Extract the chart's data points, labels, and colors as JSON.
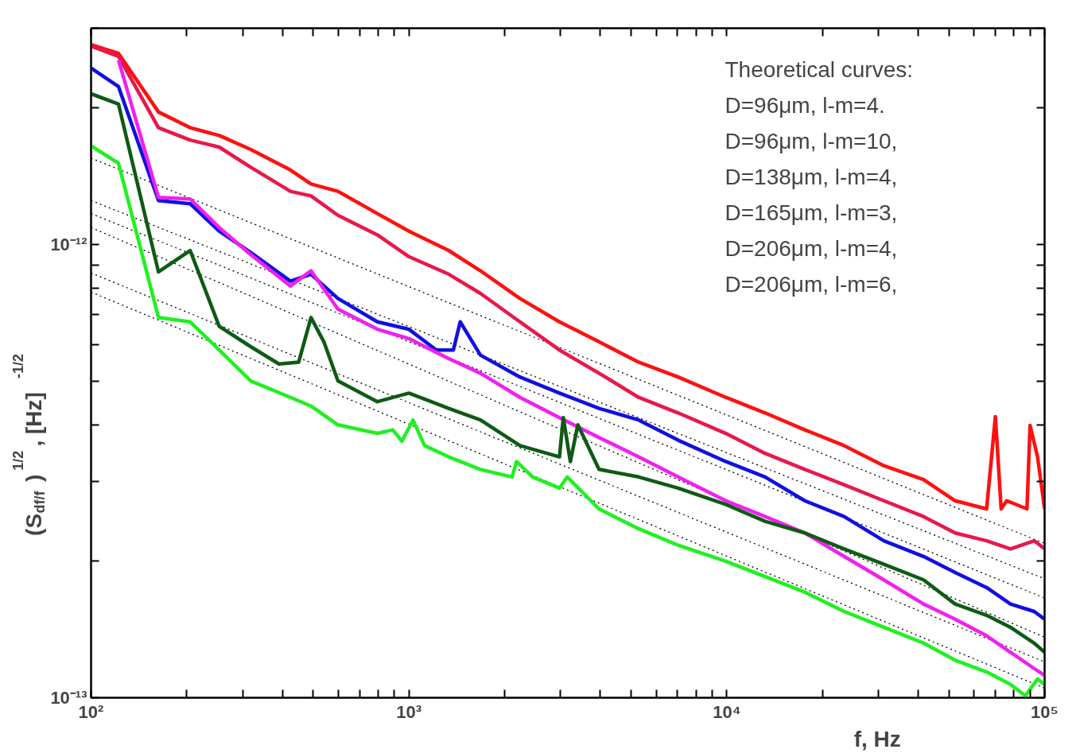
{
  "chart_data": {
    "type": "line",
    "xlabel": "f, Hz",
    "ylabel": "(S$_{df/f}$)$^{1/2}$,   [Hz]$^{-1/2}$",
    "log": "xy",
    "grid": false,
    "marker": "none",
    "xlim": [
      100,
      100000
    ],
    "ylim": [
      1e-13,
      3e-12
    ],
    "xticks": [
      {
        "value": 100,
        "label": "10²"
      },
      {
        "value": 200,
        "label": null
      },
      {
        "value": 300,
        "label": null
      },
      {
        "value": 400,
        "label": null
      },
      {
        "value": 500,
        "label": null
      },
      {
        "value": 600,
        "label": null
      },
      {
        "value": 700,
        "label": null
      },
      {
        "value": 800,
        "label": null
      },
      {
        "value": 900,
        "label": null
      },
      {
        "value": 1000,
        "label": "10³"
      },
      {
        "value": 2000,
        "label": null
      },
      {
        "value": 3000,
        "label": null
      },
      {
        "value": 4000,
        "label": null
      },
      {
        "value": 5000,
        "label": null
      },
      {
        "value": 6000,
        "label": null
      },
      {
        "value": 7000,
        "label": null
      },
      {
        "value": 8000,
        "label": null
      },
      {
        "value": 9000,
        "label": null
      },
      {
        "value": 10000,
        "label": "10⁴"
      },
      {
        "value": 20000,
        "label": null
      },
      {
        "value": 30000,
        "label": null
      },
      {
        "value": 40000,
        "label": null
      },
      {
        "value": 50000,
        "label": null
      },
      {
        "value": 60000,
        "label": null
      },
      {
        "value": 70000,
        "label": null
      },
      {
        "value": 80000,
        "label": null
      },
      {
        "value": 90000,
        "label": null
      },
      {
        "value": 100000,
        "label": "10⁵"
      }
    ],
    "yticks": [
      {
        "value": 1e-13,
        "label": "10⁻¹³"
      },
      {
        "value": 2e-13,
        "label": null
      },
      {
        "value": 3e-13,
        "label": null
      },
      {
        "value": 4e-13,
        "label": null
      },
      {
        "value": 5e-13,
        "label": null
      },
      {
        "value": 6e-13,
        "label": null
      },
      {
        "value": 7e-13,
        "label": null
      },
      {
        "value": 8e-13,
        "label": null
      },
      {
        "value": 9e-13,
        "label": null
      },
      {
        "value": 1e-12,
        "label": "10⁻¹²"
      },
      {
        "value": 2e-12,
        "label": null
      },
      {
        "value": 3e-12,
        "label": null
      }
    ],
    "annotations": [
      "Theoretical curves:",
      "D=96μm,   l-m=4.",
      "D=96μm,   l-m=10,",
      "D=138μm,   l-m=4,",
      "D=165μm,   l-m=3,",
      "D=206μm,   l-m=4,",
      "D=206μm,   l-m=6,"
    ],
    "series": [
      {
        "color": "#000000",
        "line_style": "dotted",
        "x": [
          100,
          100000
        ],
        "values": [
          1.55e-12,
          2.19e-13
        ]
      },
      {
        "color": "#000000",
        "line_style": "dotted",
        "x": [
          100,
          100000
        ],
        "values": [
          1.25e-12,
          1.83e-13
        ]
      },
      {
        "color": "#000000",
        "line_style": "dotted",
        "x": [
          100,
          100000
        ],
        "values": [
          1.17e-12,
          1.66e-13
        ]
      },
      {
        "color": "#000000",
        "line_style": "dotted",
        "x": [
          100,
          100000
        ],
        "values": [
          1.09e-12,
          1.36e-13
        ]
      },
      {
        "color": "#000000",
        "line_style": "dotted",
        "x": [
          100,
          100000
        ],
        "values": [
          8.65e-13,
          1.2e-13
        ]
      },
      {
        "color": "#000000",
        "line_style": "dotted",
        "x": [
          100,
          100000
        ],
        "values": [
          7.85e-13,
          1.05e-13
        ]
      },
      {
        "color": "#ff1010",
        "x": [
          100,
          122,
          163,
          205,
          253,
          318,
          424,
          492,
          598,
          796,
          1000,
          1334,
          1679,
          2235,
          2976,
          3963,
          5280,
          7030,
          9930,
          13200,
          17600,
          23400,
          31200,
          41600,
          52300,
          65700,
          70000,
          73000,
          76000,
          88000,
          90000,
          95000,
          100000
        ],
        "values": [
          2.76e-12,
          2.64e-12,
          1.96e-12,
          1.81e-12,
          1.74e-12,
          1.62e-12,
          1.46e-12,
          1.36e-12,
          1.31e-12,
          1.17e-12,
          1.07e-12,
          9.7e-13,
          8.75e-13,
          7.6e-13,
          6.75e-13,
          6.1e-13,
          5.5e-13,
          5.1e-13,
          4.6e-13,
          4.25e-13,
          3.9e-13,
          3.6e-13,
          3.25e-13,
          3.03e-13,
          2.72e-13,
          2.61e-13,
          4.17e-13,
          2.61e-13,
          2.72e-13,
          2.61e-13,
          3.99e-13,
          3.4e-13,
          2.61e-13
        ]
      },
      {
        "color": "#e8184a",
        "x": [
          100,
          122,
          163,
          205,
          253,
          318,
          424,
          492,
          598,
          796,
          1000,
          1334,
          1679,
          2235,
          2976,
          3963,
          5280,
          7030,
          9930,
          13200,
          17600,
          23400,
          31200,
          41600,
          52300,
          65700,
          78100,
          92700,
          100000
        ],
        "values": [
          2.74e-12,
          2.6e-12,
          1.81e-12,
          1.7e-12,
          1.64e-12,
          1.48e-12,
          1.31e-12,
          1.28e-12,
          1.16e-12,
          1.05e-12,
          9.4e-13,
          8.6e-13,
          7.8e-13,
          6.75e-13,
          5.85e-13,
          5.2e-13,
          4.6e-13,
          4.25e-13,
          3.83e-13,
          3.46e-13,
          3.19e-13,
          2.95e-13,
          2.72e-13,
          2.51e-13,
          2.31e-13,
          2.22e-13,
          2.13e-13,
          2.22e-13,
          2.13e-13
        ]
      },
      {
        "color": "#1010e0",
        "x": [
          100,
          122,
          163,
          205,
          253,
          318,
          424,
          492,
          598,
          796,
          1000,
          1220,
          1380,
          1450,
          1679,
          2235,
          2976,
          3963,
          5280,
          7030,
          9930,
          13200,
          17600,
          23400,
          31200,
          41600,
          52300,
          65700,
          78100,
          92700,
          100000
        ],
        "values": [
          2.45e-12,
          2.23e-12,
          1.25e-12,
          1.23e-12,
          1.07e-12,
          9.6e-13,
          8.3e-13,
          8.6e-13,
          7.6e-13,
          6.75e-13,
          6.5e-13,
          5.85e-13,
          5.85e-13,
          6.75e-13,
          5.7e-13,
          5.1e-13,
          4.7e-13,
          4.35e-13,
          4.1e-13,
          3.7e-13,
          3.32e-13,
          3.07e-13,
          2.72e-13,
          2.51e-13,
          2.22e-13,
          2.05e-13,
          1.89e-13,
          1.75e-13,
          1.61e-13,
          1.55e-13,
          1.49e-13
        ]
      },
      {
        "color": "#f020f0",
        "x": [
          122,
          163,
          205,
          253,
          318,
          424,
          492,
          598,
          796,
          1000,
          1334,
          1679,
          2235,
          2976,
          3963,
          5280,
          7030,
          9930,
          13200,
          17600,
          23400,
          31200,
          41600,
          52300,
          65700,
          78100,
          92700,
          100000
        ],
        "values": [
          2.55e-12,
          1.27e-12,
          1.26e-12,
          1.09e-12,
          9.5e-13,
          8.1e-13,
          8.75e-13,
          7.2e-13,
          6.5e-13,
          6.2e-13,
          5.6e-13,
          5.2e-13,
          4.6e-13,
          4.15e-13,
          3.75e-13,
          3.4e-13,
          3.07e-13,
          2.72e-13,
          2.51e-13,
          2.31e-13,
          2.05e-13,
          1.82e-13,
          1.61e-13,
          1.49e-13,
          1.37e-13,
          1.26e-13,
          1.16e-13,
          1.12e-13
        ]
      },
      {
        "color": "#0f5a14",
        "x": [
          100,
          122,
          163,
          205,
          253,
          318,
          390,
          450,
          492,
          540,
          598,
          796,
          1000,
          1334,
          1679,
          2235,
          2976,
          3060,
          3220,
          3400,
          3963,
          5280,
          7030,
          9930,
          13200,
          17600,
          23400,
          31200,
          41600,
          52300,
          65700,
          78100,
          92700,
          100000
        ],
        "values": [
          2.15e-12,
          2.04e-12,
          8.7e-13,
          9.7e-13,
          6.6e-13,
          5.95e-13,
          5.45e-13,
          5.5e-13,
          6.9e-13,
          6.1e-13,
          5e-13,
          4.5e-13,
          4.7e-13,
          4.35e-13,
          4.1e-13,
          3.6e-13,
          3.4e-13,
          4.15e-13,
          3.32e-13,
          4e-13,
          3.19e-13,
          3.07e-13,
          2.9e-13,
          2.67e-13,
          2.45e-13,
          2.31e-13,
          2.13e-13,
          1.97e-13,
          1.82e-13,
          1.61e-13,
          1.52e-13,
          1.43e-13,
          1.32e-13,
          1.26e-13
        ]
      },
      {
        "color": "#20f020",
        "x": [
          100,
          122,
          163,
          205,
          253,
          318,
          424,
          492,
          598,
          796,
          890,
          950,
          1030,
          1120,
          1334,
          1679,
          2112,
          2180,
          2450,
          2976,
          3150,
          3963,
          5280,
          7030,
          9930,
          13200,
          17600,
          23400,
          31200,
          41600,
          52300,
          65700,
          78100,
          87000,
          95000,
          100000
        ],
        "values": [
          1.65e-12,
          1.51e-12,
          6.9e-13,
          6.75e-13,
          5.85e-13,
          5e-13,
          4.6e-13,
          4.4e-13,
          4e-13,
          3.83e-13,
          3.9e-13,
          3.68e-13,
          4.1e-13,
          3.6e-13,
          3.4e-13,
          3.19e-13,
          3.07e-13,
          3.32e-13,
          3.07e-13,
          2.9e-13,
          3.07e-13,
          2.61e-13,
          2.36e-13,
          2.17e-13,
          2e-13,
          1.85e-13,
          1.71e-13,
          1.55e-13,
          1.43e-13,
          1.32e-13,
          1.21e-13,
          1.14e-13,
          1.07e-13,
          1.01e-13,
          1.1e-13,
          1.07e-13
        ]
      }
    ]
  }
}
